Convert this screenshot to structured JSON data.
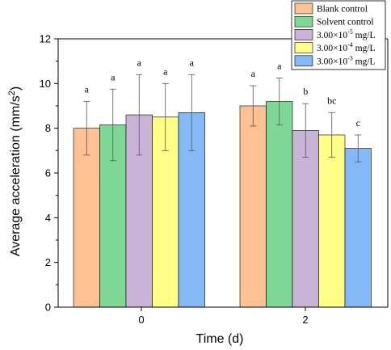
{
  "chart_data": {
    "type": "bar",
    "xlabel": "Time (d)",
    "ylabel_main": "Average acceleration (mm/s",
    "ylabel_sup": "2",
    "ylabel_end": ")",
    "ylim": [
      0,
      12
    ],
    "yticks": [
      "0",
      "2",
      "4",
      "6",
      "8",
      "10",
      "12"
    ],
    "categories": [
      "0",
      "2"
    ],
    "grid": false,
    "legend_position": "top-right",
    "series": [
      {
        "name_base": "Blank control",
        "name_exp": "",
        "name_unit": "",
        "color": "#FDC193",
        "values": [
          8.0,
          9.0
        ],
        "error": [
          1.2,
          0.9
        ],
        "sig": [
          "a",
          "a"
        ]
      },
      {
        "name_base": "Solvent control",
        "name_exp": "",
        "name_unit": "",
        "color": "#7FD796",
        "values": [
          8.15,
          9.2
        ],
        "error": [
          1.6,
          1.05
        ],
        "sig": [
          "a",
          "a"
        ]
      },
      {
        "name_base": "3.00×10",
        "name_exp": "-5",
        "name_unit": " mg/L",
        "color": "#C9B3D7",
        "values": [
          8.6,
          7.9
        ],
        "error": [
          1.8,
          1.2
        ],
        "sig": [
          "a",
          "b"
        ]
      },
      {
        "name_base": "3.00×10",
        "name_exp": "-4",
        "name_unit": " mg/L",
        "color": "#FFFF88",
        "values": [
          8.5,
          7.7
        ],
        "error": [
          1.5,
          1.0
        ],
        "sig": [
          "a",
          "bc"
        ]
      },
      {
        "name_base": "3.00×10",
        "name_exp": "-3",
        "name_unit": " mg/L",
        "color": "#84B8F7",
        "values": [
          8.7,
          7.1
        ],
        "error": [
          1.7,
          0.6
        ],
        "sig": [
          "a",
          "c"
        ]
      }
    ]
  }
}
